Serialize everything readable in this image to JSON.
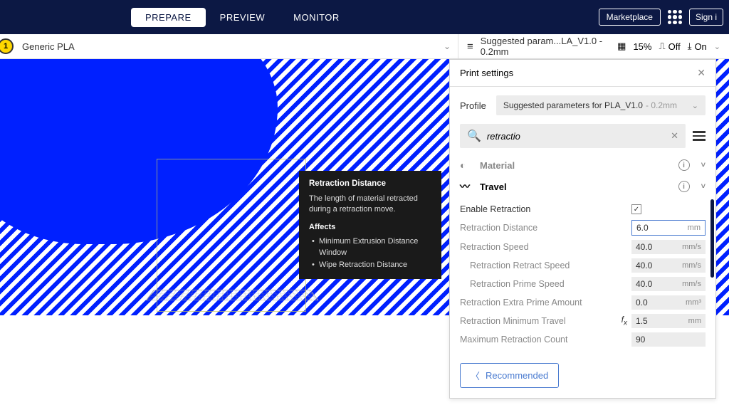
{
  "topbar": {
    "tabs": [
      "PREPARE",
      "PREVIEW",
      "MONITOR"
    ],
    "activeTab": 0,
    "marketplace": "Marketplace",
    "signin": "Sign i"
  },
  "material": {
    "badge": "1",
    "name": "Generic PLA"
  },
  "settingsBar": {
    "profile": "Suggested param...LA_V1.0 - 0.2mm",
    "infillPct": "15%",
    "supportLabel": "Off",
    "adhesionLabel": "On"
  },
  "tooltip": {
    "title": "Retraction Distance",
    "desc": "The length of material retracted during a retraction move.",
    "affectsLabel": "Affects",
    "affects": [
      "Minimum Extrusion Distance Window",
      "Wipe Retraction Distance"
    ]
  },
  "panel": {
    "title": "Print settings",
    "profileLabel": "Profile",
    "profileValue": "Suggested parameters for PLA_V1.0",
    "profileDim": "- 0.2mm",
    "searchValue": "retractio",
    "sectionMaterial": "Material",
    "sectionTravel": "Travel",
    "settings": {
      "enableRetraction": {
        "label": "Enable Retraction",
        "checked": true
      },
      "retractionDistance": {
        "label": "Retraction Distance",
        "value": "6.0",
        "unit": "mm",
        "active": true
      },
      "retractionSpeed": {
        "label": "Retraction Speed",
        "value": "40.0",
        "unit": "mm/s"
      },
      "retractSpeed": {
        "label": "Retraction Retract Speed",
        "value": "40.0",
        "unit": "mm/s"
      },
      "primeSpeed": {
        "label": "Retraction Prime Speed",
        "value": "40.0",
        "unit": "mm/s"
      },
      "extraPrime": {
        "label": "Retraction Extra Prime Amount",
        "value": "0.0",
        "unit": "mm³"
      },
      "minTravel": {
        "label": "Retraction Minimum Travel",
        "value": "1.5",
        "unit": "mm",
        "fx": true
      },
      "maxCount": {
        "label": "Maximum Retraction Count",
        "value": "90",
        "unit": ""
      }
    },
    "recommended": "Recommended"
  },
  "colors": {
    "navy": "#0c1844",
    "blue": "#0020ff",
    "accent": "#4a7bd0",
    "gold": "#ffd700",
    "grayBg": "#ececec"
  }
}
